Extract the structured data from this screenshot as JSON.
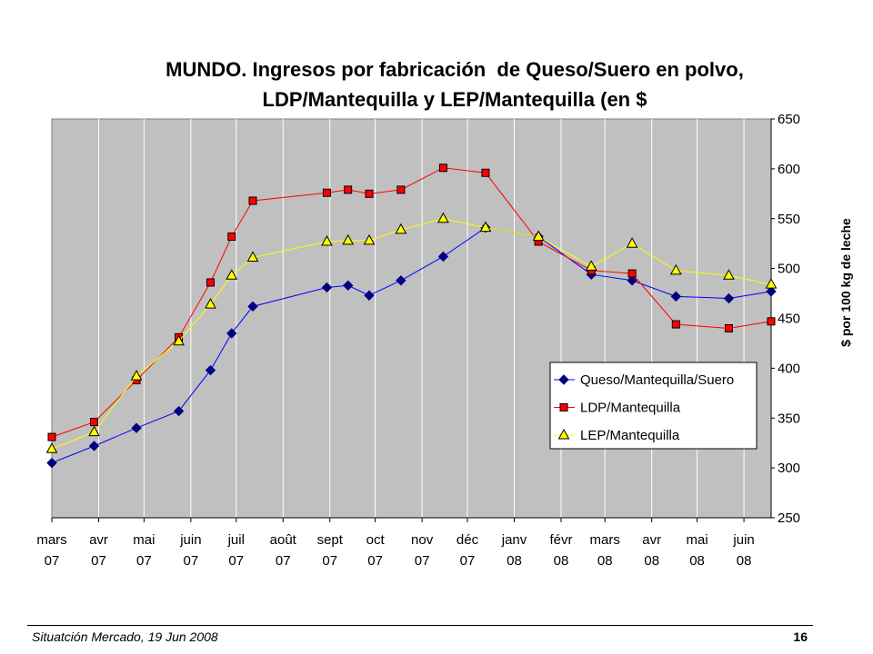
{
  "slide": {
    "footer_source": "Situatción Mercado, 19 Jun 2008",
    "page_number": "16"
  },
  "chart_data": {
    "type": "line",
    "title": "MUNDO. Ingresos por fabricación  de Queso/Suero en polvo,\nLDP/Mantequilla y LEP/Mantequilla (en $",
    "ylabel": "$ por 100 kg de leche",
    "plot_background": "#C0C0C0",
    "grid": {
      "vertical": true,
      "horizontal": false,
      "color": "#FFFFFF"
    },
    "legend": {
      "position": "bottom-right"
    },
    "x_axis": {
      "type": "date",
      "min": "2007-03-01",
      "max": "2008-06-19",
      "ticks": [
        {
          "date": "2007-03-01",
          "label": [
            "mars",
            "07"
          ]
        },
        {
          "date": "2007-04-01",
          "label": [
            "avr",
            "07"
          ]
        },
        {
          "date": "2007-05-01",
          "label": [
            "mai",
            "07"
          ]
        },
        {
          "date": "2007-06-01",
          "label": [
            "juin",
            "07"
          ]
        },
        {
          "date": "2007-07-01",
          "label": [
            "juil",
            "07"
          ]
        },
        {
          "date": "2007-08-01",
          "label": [
            "août",
            "07"
          ]
        },
        {
          "date": "2007-09-01",
          "label": [
            "sept",
            "07"
          ]
        },
        {
          "date": "2007-10-01",
          "label": [
            "oct",
            "07"
          ]
        },
        {
          "date": "2007-11-01",
          "label": [
            "nov",
            "07"
          ]
        },
        {
          "date": "2007-12-01",
          "label": [
            "déc",
            "07"
          ]
        },
        {
          "date": "2008-01-01",
          "label": [
            "janv",
            "08"
          ]
        },
        {
          "date": "2008-02-01",
          "label": [
            "févr",
            "08"
          ]
        },
        {
          "date": "2008-03-01",
          "label": [
            "mars",
            "08"
          ]
        },
        {
          "date": "2008-04-01",
          "label": [
            "avr",
            "08"
          ]
        },
        {
          "date": "2008-05-01",
          "label": [
            "mai",
            "08"
          ]
        },
        {
          "date": "2008-06-01",
          "label": [
            "juin",
            "08"
          ]
        }
      ]
    },
    "y_axis": {
      "position": "right",
      "min": 250,
      "max": 650,
      "ticks": [
        250,
        300,
        350,
        400,
        450,
        500,
        550,
        600,
        650
      ]
    },
    "x": [
      "2007-03-01",
      "2007-03-29",
      "2007-04-26",
      "2007-05-24",
      "2007-06-14",
      "2007-06-28",
      "2007-07-12",
      "2007-08-30",
      "2007-09-13",
      "2007-09-27",
      "2007-10-18",
      "2007-11-15",
      "2007-12-13",
      "2008-01-17",
      "2008-02-21",
      "2008-03-19",
      "2008-04-17",
      "2008-05-22",
      "2008-06-19"
    ],
    "series": [
      {
        "name": "Queso/Mantequilla/Suero",
        "color": "#0000FF",
        "marker": "diamond",
        "marker_fill": "#000080",
        "marker_stroke": "#000080",
        "values": [
          305,
          322,
          340,
          357,
          398,
          435,
          462,
          481,
          483,
          473,
          488,
          512,
          541,
          532,
          494,
          488,
          472,
          470,
          477
        ]
      },
      {
        "name": "LDP/Mantequilla",
        "color": "#FF0000",
        "marker": "square",
        "marker_fill": "#FF0000",
        "marker_stroke": "#000000",
        "values": [
          331,
          346,
          388,
          431,
          486,
          532,
          568,
          576,
          579,
          575,
          579,
          601,
          596,
          527,
          498,
          495,
          444,
          440,
          447
        ]
      },
      {
        "name": "LEP/Mantequilla",
        "color": "#FFFF00",
        "marker": "triangle",
        "marker_fill": "#FFFF00",
        "marker_stroke": "#000000",
        "values": [
          319,
          336,
          392,
          427,
          464,
          493,
          511,
          527,
          528,
          528,
          539,
          550,
          541,
          532,
          502,
          525,
          498,
          493,
          484
        ]
      }
    ]
  }
}
